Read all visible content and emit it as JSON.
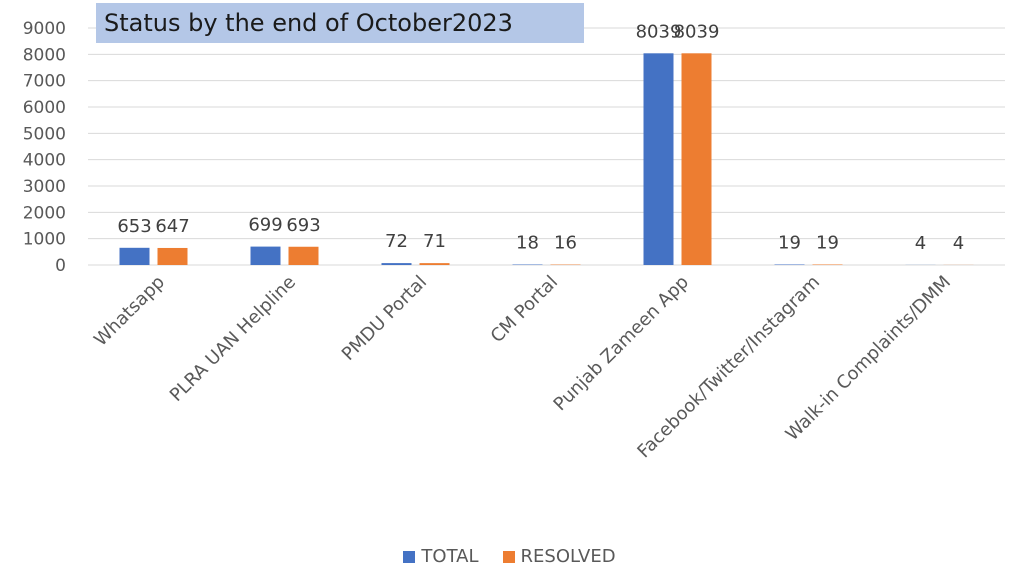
{
  "chart_data": {
    "type": "bar",
    "title": "Status by the end of October2023",
    "categories": [
      "Whatsapp",
      "PLRA UAN Helpline",
      "PMDU Portal",
      "CM Portal",
      "Punjab Zameen App",
      "Facebook/Twitter/Instagram",
      "Walk-in Complaints/DMM"
    ],
    "series": [
      {
        "name": "TOTAL",
        "color": "#4472c4",
        "values": [
          653,
          699,
          72,
          18,
          8039,
          19,
          4
        ]
      },
      {
        "name": "RESOLVED",
        "color": "#ed7d31",
        "values": [
          647,
          693,
          71,
          16,
          8039,
          19,
          4
        ]
      }
    ],
    "ylim": [
      0,
      9000
    ],
    "yticks": [
      0,
      1000,
      2000,
      3000,
      4000,
      5000,
      6000,
      7000,
      8000,
      9000
    ],
    "xlabel": "",
    "ylabel": "",
    "grid": true,
    "legend": "bottom",
    "data_labels": true
  }
}
